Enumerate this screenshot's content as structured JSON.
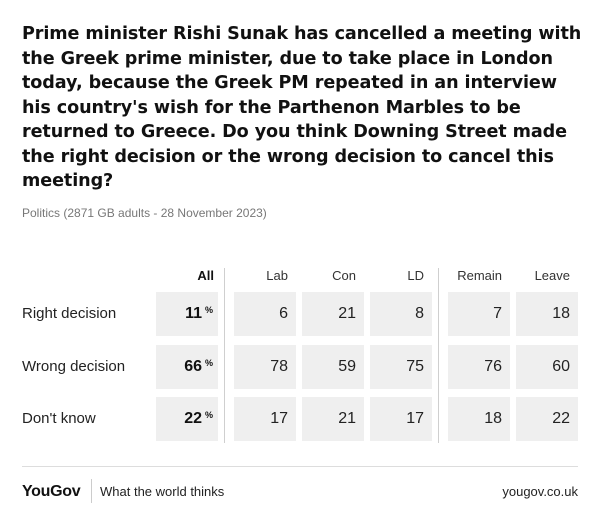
{
  "header": {
    "question": "Prime minister Rishi Sunak has cancelled a meeting with the Greek prime minister, due to take place in London today, because the Greek PM repeated in an interview his country's wish for the Parthenon Marbles to be returned to Greece. Do you think Downing Street made the right decision or the wrong decision to cancel this meeting?",
    "subtitle": "Politics (2871 GB adults - 28 November 2023)"
  },
  "chart_data": {
    "type": "table",
    "title": "Prime minister Rishi Sunak has cancelled a meeting with the Greek prime minister, due to take place in London today, because the Greek PM repeated in an interview his country's wish for the Parthenon Marbles to be returned to Greece. Do you think Downing Street made the right decision or the wrong decision to cancel this meeting?",
    "unit": "%",
    "columns": [
      "All",
      "Lab",
      "Con",
      "LD",
      "Remain",
      "Leave"
    ],
    "rows": [
      {
        "label": "Right decision",
        "values": [
          11,
          6,
          21,
          8,
          7,
          18
        ]
      },
      {
        "label": "Wrong decision",
        "values": [
          66,
          78,
          59,
          75,
          76,
          60
        ]
      },
      {
        "label": "Don't know",
        "values": [
          22,
          17,
          21,
          17,
          18,
          22
        ]
      }
    ]
  },
  "footer": {
    "brand": "YouGov",
    "tagline": "What the world thinks",
    "site": "yougov.co.uk"
  },
  "colors": {
    "cell_bg": "#efefef",
    "text": "#111111",
    "muted": "#777777"
  }
}
